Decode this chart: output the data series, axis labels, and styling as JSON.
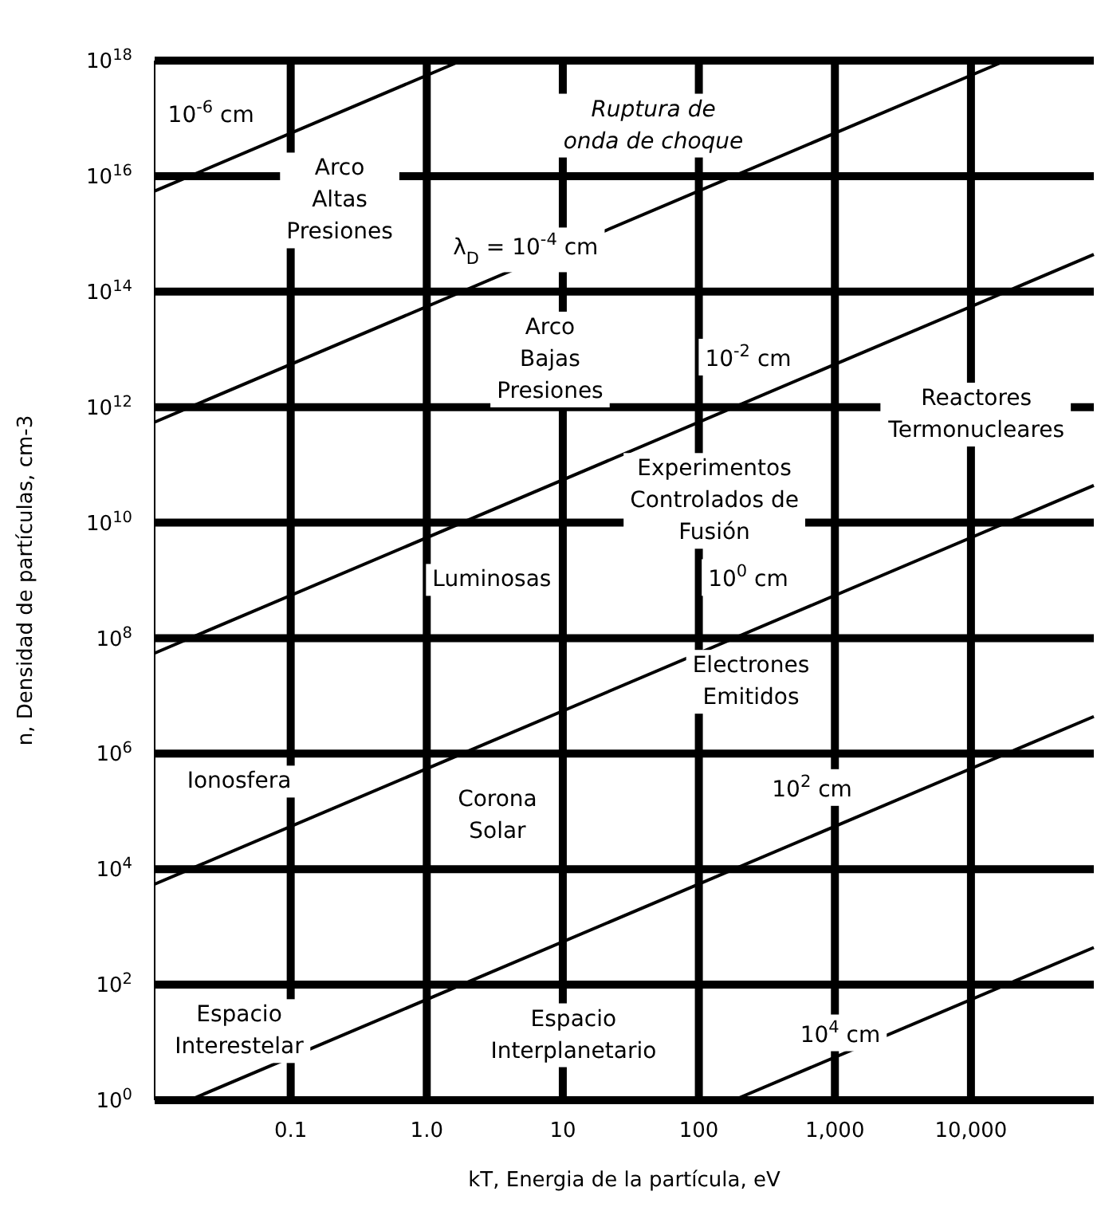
{
  "chart_data": {
    "type": "line",
    "xlabel": "kT, Energia de la partícula, eV",
    "ylabel": "n, Densidad de partículas, cm-3",
    "log": "xy",
    "grid": true,
    "marker": "none",
    "line_style": "solid",
    "xlim": [
      0.01,
      80000
    ],
    "ylim": [
      1,
      1e+18
    ],
    "xticks": [
      0.1,
      {
        "value": 1,
        "label": "1.0"
      },
      10,
      100,
      {
        "value": 1000,
        "label": "1,000"
      },
      {
        "value": 10000,
        "label": "10,000"
      }
    ],
    "yticks": [
      {
        "value": 1,
        "label": "10$^{0}$"
      },
      {
        "value": 100,
        "label": "10$^{2}$"
      },
      {
        "value": 10000,
        "label": "10$^{4}$"
      },
      {
        "value": 1000000.0,
        "label": "10$^{6}$"
      },
      {
        "value": 100000000.0,
        "label": "10$^{8}$"
      },
      {
        "value": 10000000000.0,
        "label": "10$^{10}$"
      },
      {
        "value": 1000000000000.0,
        "label": "10$^{12}$"
      },
      {
        "value": 100000000000000.0,
        "label": "10$^{14}$"
      },
      {
        "value": 1e+16,
        "label": "10$^{16}$"
      },
      {
        "value": 1e+18,
        "label": "10$^{18}$"
      }
    ],
    "series": [
      {
        "color": "#000000",
        "x": [
          0.01,
          1.8
        ],
        "values": [
          5500000000000000.0,
          1e+18
        ]
      },
      {
        "color": "#000000",
        "x": [
          0.01,
          18000
        ],
        "values": [
          550000000000.0,
          1e+18
        ]
      },
      {
        "color": "#000000",
        "x": [
          0.01,
          80000
        ],
        "values": [
          55000000.0,
          440000000000000.0
        ]
      },
      {
        "color": "#000000",
        "x": [
          0.01,
          80000
        ],
        "values": [
          5500,
          44000000000.0
        ]
      },
      {
        "color": "#000000",
        "x": [
          0.018,
          80000
        ],
        "values": [
          1,
          4400000.0
        ]
      },
      {
        "color": "#000000",
        "x": [
          180,
          80000
        ],
        "values": [
          1,
          440
        ]
      }
    ],
    "annotations": [
      "10$^{-6}$ cm",
      "Ruptura de\nonda de choque",
      "Arco\nAltas\nPresiones",
      "λ$_{D}$ = 10$^{-4}$ cm",
      "Arco\nBajas\nPresiones",
      "10$^{-2}$ cm",
      "Reactores\nTermonucleares",
      "Experimentos\nControlados de\nFusión",
      "Luminosas",
      "10$^{0}$ cm",
      "Electrones\nEmitidos",
      "Ionosfera",
      "Corona\nSolar",
      "10$^{2}$ cm",
      "Espacio\nInterestelar",
      "Espacio\nInterplanetario",
      "10$^{4}$ cm"
    ]
  }
}
